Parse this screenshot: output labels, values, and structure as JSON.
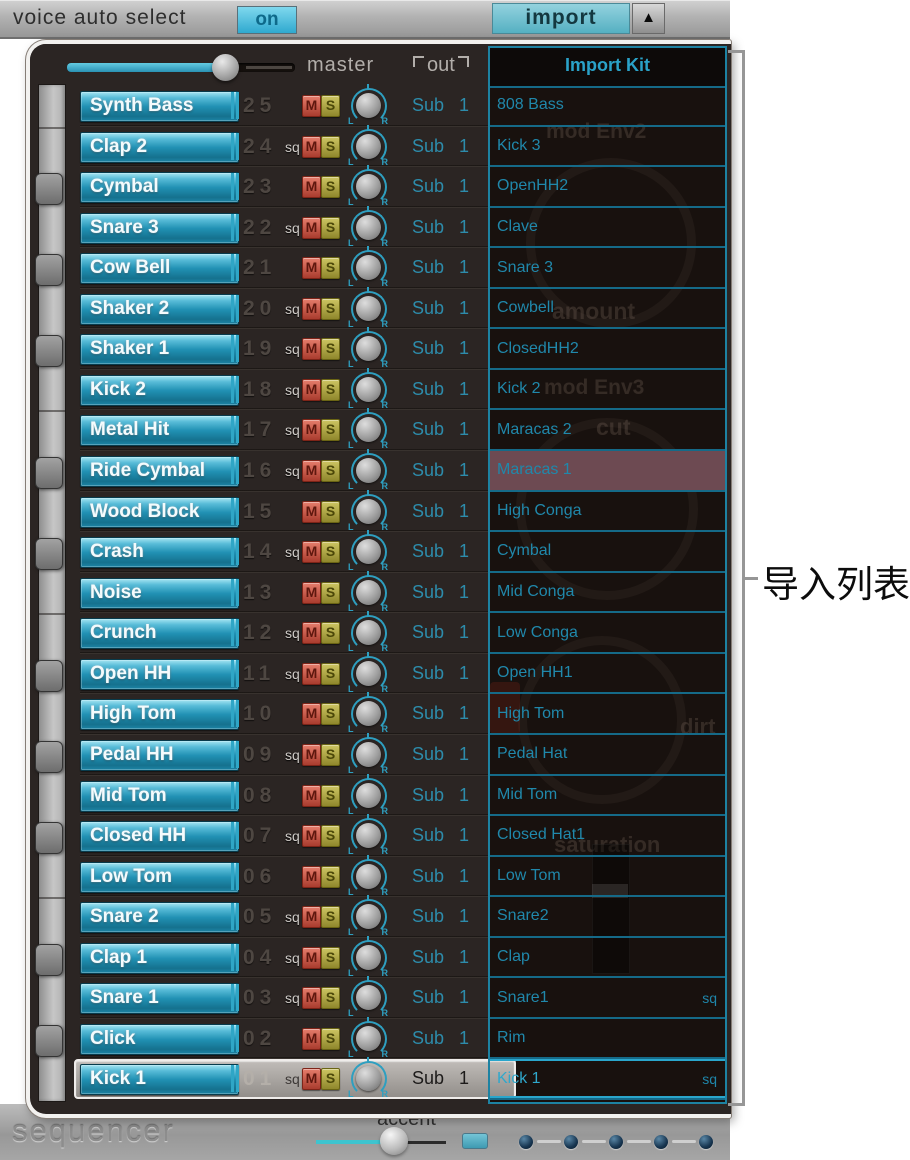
{
  "top_bar": {
    "voice_auto_select": "voice auto select",
    "on": "on",
    "import": "import",
    "menu_arrow": "▲"
  },
  "master": {
    "label": "master",
    "out": "out"
  },
  "labels": {
    "sq": "sq",
    "mute": "M",
    "solo": "S",
    "out_value": "Sub 1",
    "pan_left": "L",
    "pan_right": "R"
  },
  "import_panel": {
    "header": "Import Kit",
    "ghost_labels": [
      "mod Env2",
      "amount",
      "mod Env3",
      "cut",
      "dirt",
      "saturation"
    ]
  },
  "annotation": "导入列表",
  "bottom": {
    "sequencer": "sequencer",
    "accent": "accent"
  },
  "colors": {
    "accent_cyan": "#2fa6c6",
    "voice_button_blue": "#2191b4",
    "mute_red": "#b4443a",
    "solo_olive": "#a39a38",
    "import_text": "#2088ab",
    "import_highlight_red": "#6d4a52",
    "selected_row_gray": "#a8a4a0"
  },
  "voices": [
    {
      "num": "25",
      "name": "Synth Bass",
      "sq": false,
      "black_key": false,
      "selected": false,
      "import_name": "808 Bass",
      "import_sq": false,
      "import_highlight": false,
      "import_selected": false
    },
    {
      "num": "24",
      "name": "Clap 2",
      "sq": true,
      "black_key": false,
      "selected": false,
      "import_name": "Kick 3",
      "import_sq": false,
      "import_highlight": false,
      "import_selected": false
    },
    {
      "num": "23",
      "name": "Cymbal",
      "sq": false,
      "black_key": true,
      "selected": false,
      "import_name": "OpenHH2",
      "import_sq": false,
      "import_highlight": false,
      "import_selected": false
    },
    {
      "num": "22",
      "name": "Snare 3",
      "sq": true,
      "black_key": false,
      "selected": false,
      "import_name": "Clave",
      "import_sq": false,
      "import_highlight": false,
      "import_selected": false
    },
    {
      "num": "21",
      "name": "Cow Bell",
      "sq": false,
      "black_key": true,
      "selected": false,
      "import_name": "Snare 3",
      "import_sq": false,
      "import_highlight": false,
      "import_selected": false
    },
    {
      "num": "20",
      "name": "Shaker 2",
      "sq": true,
      "black_key": false,
      "selected": false,
      "import_name": "Cowbell",
      "import_sq": false,
      "import_highlight": false,
      "import_selected": false
    },
    {
      "num": "19",
      "name": "Shaker 1",
      "sq": true,
      "black_key": true,
      "selected": false,
      "import_name": "ClosedHH2",
      "import_sq": false,
      "import_highlight": false,
      "import_selected": false
    },
    {
      "num": "18",
      "name": "Kick 2",
      "sq": true,
      "black_key": false,
      "selected": false,
      "import_name": "Kick 2",
      "import_sq": false,
      "import_highlight": false,
      "import_selected": false
    },
    {
      "num": "17",
      "name": "Metal Hit",
      "sq": true,
      "black_key": false,
      "selected": false,
      "import_name": "Maracas 2",
      "import_sq": false,
      "import_highlight": false,
      "import_selected": false
    },
    {
      "num": "16",
      "name": "Ride Cymbal",
      "sq": true,
      "black_key": true,
      "selected": false,
      "import_name": "Maracas 1",
      "import_sq": false,
      "import_highlight": true,
      "import_selected": false
    },
    {
      "num": "15",
      "name": "Wood Block",
      "sq": false,
      "black_key": false,
      "selected": false,
      "import_name": "High Conga",
      "import_sq": false,
      "import_highlight": false,
      "import_selected": false
    },
    {
      "num": "14",
      "name": "Crash",
      "sq": true,
      "black_key": true,
      "selected": false,
      "import_name": "Cymbal",
      "import_sq": false,
      "import_highlight": false,
      "import_selected": false
    },
    {
      "num": "13",
      "name": "Noise",
      "sq": false,
      "black_key": false,
      "selected": false,
      "import_name": "Mid Conga",
      "import_sq": false,
      "import_highlight": false,
      "import_selected": false
    },
    {
      "num": "12",
      "name": "Crunch",
      "sq": true,
      "black_key": false,
      "selected": false,
      "import_name": "Low Conga",
      "import_sq": false,
      "import_highlight": false,
      "import_selected": false
    },
    {
      "num": "11",
      "name": "Open HH",
      "sq": true,
      "black_key": true,
      "selected": false,
      "import_name": "Open HH1",
      "import_sq": false,
      "import_highlight": false,
      "import_selected": false
    },
    {
      "num": "10",
      "name": "High Tom",
      "sq": false,
      "black_key": false,
      "selected": false,
      "import_name": "High Tom",
      "import_sq": false,
      "import_highlight": false,
      "import_selected": false
    },
    {
      "num": "09",
      "name": "Pedal HH",
      "sq": true,
      "black_key": true,
      "selected": false,
      "import_name": "Pedal Hat",
      "import_sq": false,
      "import_highlight": false,
      "import_selected": false
    },
    {
      "num": "08",
      "name": "Mid Tom",
      "sq": false,
      "black_key": false,
      "selected": false,
      "import_name": "Mid Tom",
      "import_sq": false,
      "import_highlight": false,
      "import_selected": false
    },
    {
      "num": "07",
      "name": "Closed HH",
      "sq": true,
      "black_key": true,
      "selected": false,
      "import_name": "Closed Hat1",
      "import_sq": false,
      "import_highlight": false,
      "import_selected": false
    },
    {
      "num": "06",
      "name": "Low Tom",
      "sq": false,
      "black_key": false,
      "selected": false,
      "import_name": "Low Tom",
      "import_sq": false,
      "import_highlight": false,
      "import_selected": false
    },
    {
      "num": "05",
      "name": "Snare 2",
      "sq": true,
      "black_key": false,
      "selected": false,
      "import_name": "Snare2",
      "import_sq": false,
      "import_highlight": false,
      "import_selected": false
    },
    {
      "num": "04",
      "name": "Clap 1",
      "sq": true,
      "black_key": true,
      "selected": false,
      "import_name": "Clap",
      "import_sq": false,
      "import_highlight": false,
      "import_selected": false
    },
    {
      "num": "03",
      "name": "Snare 1",
      "sq": true,
      "black_key": false,
      "selected": false,
      "import_name": "Snare1",
      "import_sq": true,
      "import_highlight": false,
      "import_selected": false
    },
    {
      "num": "02",
      "name": "Click",
      "sq": false,
      "black_key": true,
      "selected": false,
      "import_name": "Rim",
      "import_sq": false,
      "import_highlight": false,
      "import_selected": false
    },
    {
      "num": "01",
      "name": "Kick 1",
      "sq": true,
      "black_key": false,
      "selected": true,
      "import_name": "Kick 1",
      "import_sq": true,
      "import_highlight": false,
      "import_selected": true
    }
  ]
}
